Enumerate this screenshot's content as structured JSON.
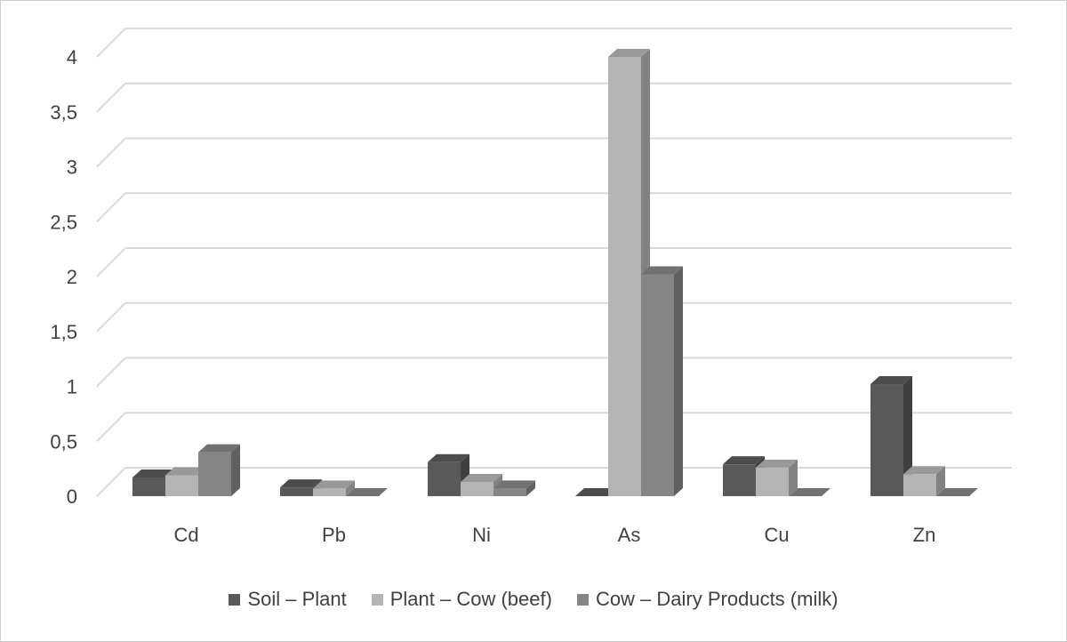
{
  "chart_data": {
    "type": "bar",
    "categories": [
      "Cd",
      "Pb",
      "Ni",
      "As",
      "Cu",
      "Zn"
    ],
    "series": [
      {
        "name": "Soil – Plant",
        "values": [
          0.17,
          0.08,
          0.31,
          0.0,
          0.29,
          1.02
        ],
        "color": "#595959"
      },
      {
        "name": "Plant – Cow (beef)",
        "values": [
          0.19,
          0.07,
          0.13,
          4.0,
          0.26,
          0.2
        ],
        "color": "#b4b4b4"
      },
      {
        "name": "Cow – Dairy Products (milk)",
        "values": [
          0.4,
          0.0,
          0.07,
          2.02,
          0.0,
          0.0
        ],
        "color": "#858585"
      }
    ],
    "y_ticks": [
      "0",
      "0,5",
      "1",
      "1,5",
      "2",
      "2,5",
      "3",
      "3,5",
      "4"
    ],
    "ylim": [
      0,
      4
    ],
    "grid": true,
    "legend_position": "bottom",
    "style": "3d-clustered-column"
  }
}
